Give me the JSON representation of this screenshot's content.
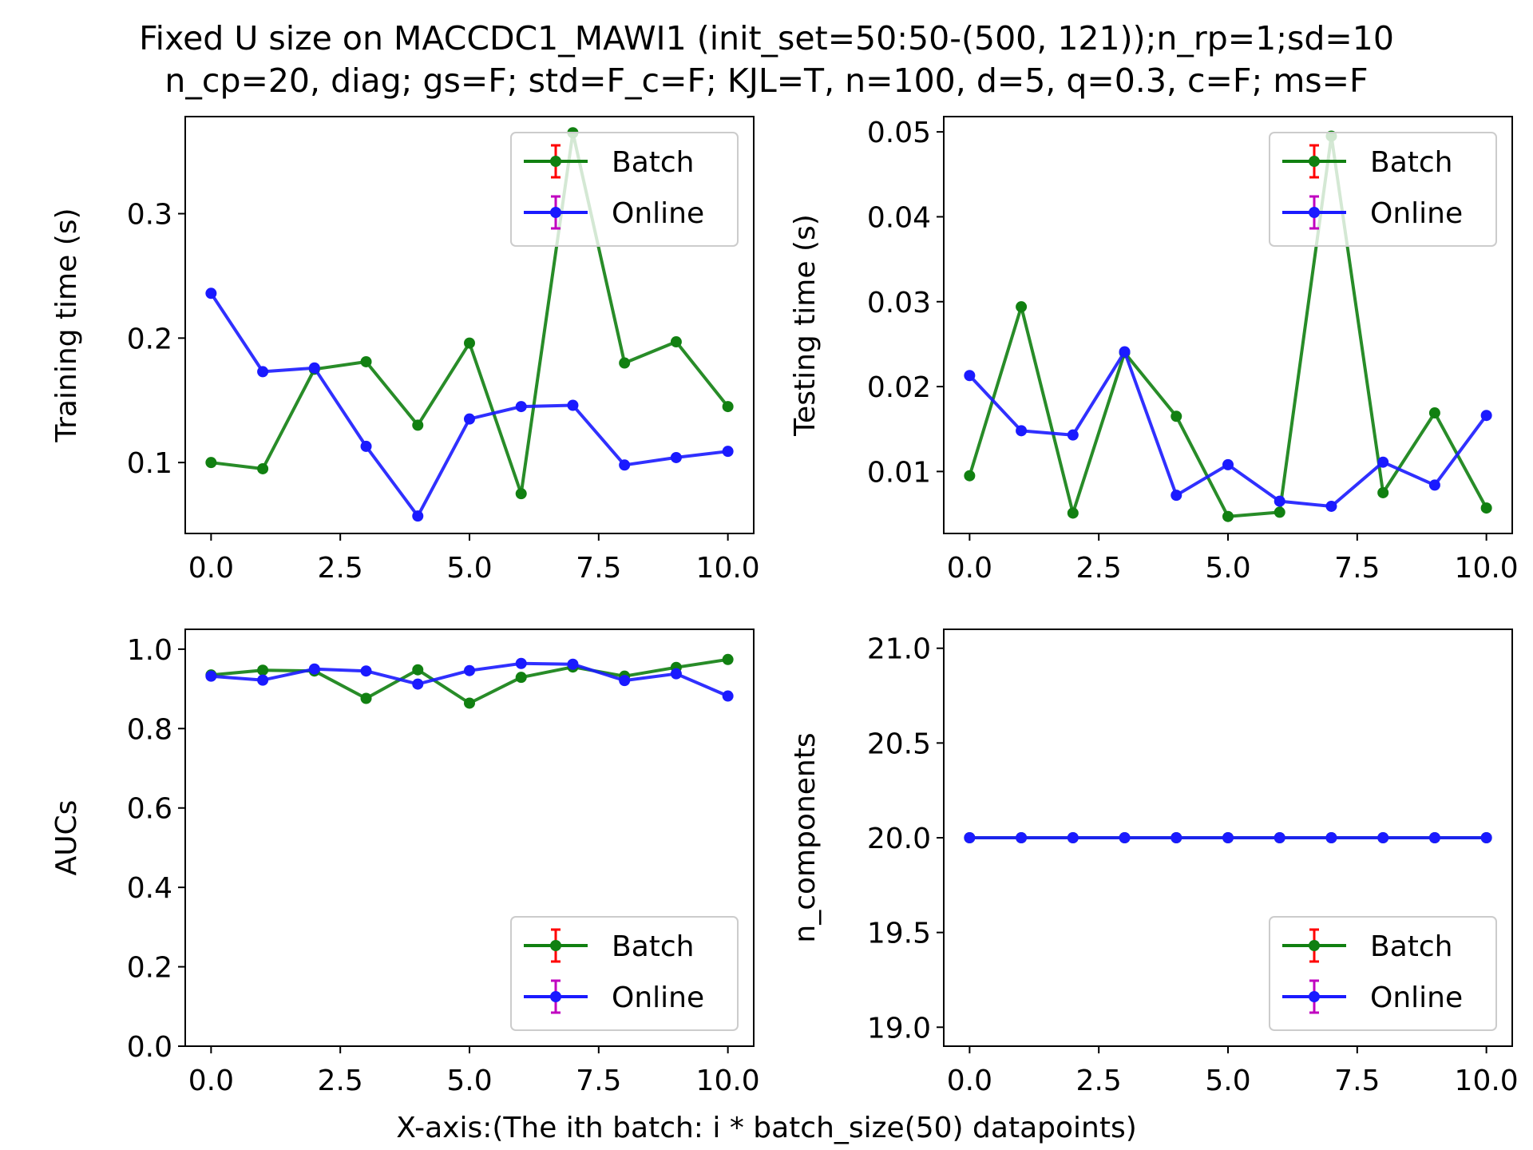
{
  "figure": {
    "title_line1": "Fixed U size on MACCDC1_MAWI1 (init_set=50:50-(500, 121));n_rp=1;sd=10",
    "title_line2": "n_cp=20, diag; gs=F; std=F_c=F; KJL=T, n=100, d=5, q=0.3, c=F; ms=F",
    "xlabel": "X-axis:(The ith batch: i * batch_size(50) datapoints)"
  },
  "colors": {
    "batch_line": "#118011",
    "online_line": "#1a1aff",
    "batch_err": "#ff0000",
    "online_err": "#c000c0",
    "axis": "#000000"
  },
  "chart_data": [
    {
      "type": "line",
      "ylabel": "Training time (s)",
      "x": [
        0,
        1,
        2,
        3,
        4,
        5,
        6,
        7,
        8,
        9,
        10
      ],
      "xlim": [
        -0.5,
        10.5
      ],
      "ylim": [
        0.043,
        0.378
      ],
      "xticks": [
        0,
        2.5,
        5,
        7.5,
        10
      ],
      "xtick_labels": [
        "0.0",
        "2.5",
        "5.0",
        "7.5",
        "10.0"
      ],
      "yticks": [
        0.1,
        0.2,
        0.3
      ],
      "ytick_labels": [
        "0.1",
        "0.2",
        "0.3"
      ],
      "series": [
        {
          "name": "Batch",
          "values": [
            0.1,
            0.095,
            0.175,
            0.181,
            0.13,
            0.196,
            0.075,
            0.365,
            0.18,
            0.197,
            0.145
          ]
        },
        {
          "name": "Online",
          "values": [
            0.236,
            0.173,
            0.176,
            0.113,
            0.057,
            0.135,
            0.145,
            0.146,
            0.098,
            0.104,
            0.109
          ]
        }
      ],
      "legend_position": "upper right"
    },
    {
      "type": "line",
      "ylabel": "Testing time (s)",
      "x": [
        0,
        1,
        2,
        3,
        4,
        5,
        6,
        7,
        8,
        9,
        10
      ],
      "xlim": [
        -0.5,
        10.5
      ],
      "ylim": [
        0.0027,
        0.0518
      ],
      "xticks": [
        0,
        2.5,
        5,
        7.5,
        10
      ],
      "xtick_labels": [
        "0.0",
        "2.5",
        "5.0",
        "7.5",
        "10.0"
      ],
      "yticks": [
        0.01,
        0.02,
        0.03,
        0.04,
        0.05
      ],
      "ytick_labels": [
        "0.01",
        "0.02",
        "0.03",
        "0.04",
        "0.05"
      ],
      "series": [
        {
          "name": "Batch",
          "values": [
            0.0095,
            0.0294,
            0.0051,
            0.024,
            0.0165,
            0.0047,
            0.0052,
            0.0495,
            0.0075,
            0.0169,
            0.0057
          ]
        },
        {
          "name": "Online",
          "values": [
            0.0213,
            0.0148,
            0.0143,
            0.0241,
            0.0072,
            0.0108,
            0.0065,
            0.0059,
            0.0111,
            0.0084,
            0.0166
          ]
        }
      ],
      "legend_position": "upper right"
    },
    {
      "type": "line",
      "ylabel": "AUCs",
      "x": [
        0,
        1,
        2,
        3,
        4,
        5,
        6,
        7,
        8,
        9,
        10
      ],
      "xlim": [
        -0.5,
        10.5
      ],
      "ylim": [
        0.0,
        1.05
      ],
      "xticks": [
        0,
        2.5,
        5,
        7.5,
        10
      ],
      "xtick_labels": [
        "0.0",
        "2.5",
        "5.0",
        "7.5",
        "10.0"
      ],
      "yticks": [
        0.0,
        0.2,
        0.4,
        0.6,
        0.8,
        1.0
      ],
      "ytick_labels": [
        "0.0",
        "0.2",
        "0.4",
        "0.6",
        "0.8",
        "1.0"
      ],
      "series": [
        {
          "name": "Batch",
          "values": [
            0.935,
            0.947,
            0.945,
            0.876,
            0.948,
            0.864,
            0.929,
            0.955,
            0.932,
            0.954,
            0.974
          ]
        },
        {
          "name": "Online",
          "values": [
            0.932,
            0.922,
            0.95,
            0.945,
            0.912,
            0.946,
            0.964,
            0.962,
            0.921,
            0.938,
            0.882
          ]
        }
      ],
      "legend_position": "lower right"
    },
    {
      "type": "line",
      "ylabel": "n_components",
      "x": [
        0,
        1,
        2,
        3,
        4,
        5,
        6,
        7,
        8,
        9,
        10
      ],
      "xlim": [
        -0.5,
        10.5
      ],
      "ylim": [
        18.9,
        21.1
      ],
      "xticks": [
        0,
        2.5,
        5,
        7.5,
        10
      ],
      "xtick_labels": [
        "0.0",
        "2.5",
        "5.0",
        "7.5",
        "10.0"
      ],
      "yticks": [
        19.0,
        19.5,
        20.0,
        20.5,
        21.0
      ],
      "ytick_labels": [
        "19.0",
        "19.5",
        "20.0",
        "20.5",
        "21.0"
      ],
      "series": [
        {
          "name": "Batch",
          "values": [
            20,
            20,
            20,
            20,
            20,
            20,
            20,
            20,
            20,
            20,
            20
          ]
        },
        {
          "name": "Online",
          "values": [
            20,
            20,
            20,
            20,
            20,
            20,
            20,
            20,
            20,
            20,
            20
          ]
        }
      ],
      "legend_position": "lower right"
    }
  ]
}
